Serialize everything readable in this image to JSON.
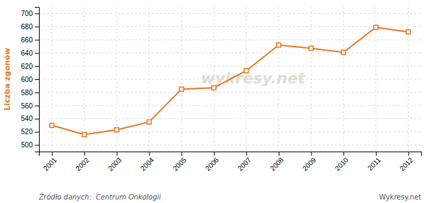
{
  "chart_data": {
    "type": "line",
    "y_label": "Liczba zgonów",
    "x": [
      2001,
      2002,
      2003,
      2004,
      2005,
      2006,
      2007,
      2008,
      2009,
      2010,
      2011,
      2012
    ],
    "values": [
      530,
      516,
      523,
      535,
      585,
      587,
      613,
      652,
      647,
      641,
      679,
      672
    ],
    "color": "#e87722",
    "marker": "square",
    "xlim": [
      2000.6,
      2012.4
    ],
    "xticks": [
      2001,
      2002,
      2003,
      2004,
      2005,
      2006,
      2007,
      2008,
      2009,
      2010,
      2011,
      2012
    ],
    "ylim": [
      490,
      710
    ],
    "yticks": [
      500,
      520,
      540,
      560,
      580,
      600,
      620,
      640,
      660,
      680,
      700
    ],
    "grid": true,
    "annotations": [
      "Źródło danych:  Centrum Onkologii",
      "Wykresy.net",
      "wykresy.net"
    ]
  }
}
